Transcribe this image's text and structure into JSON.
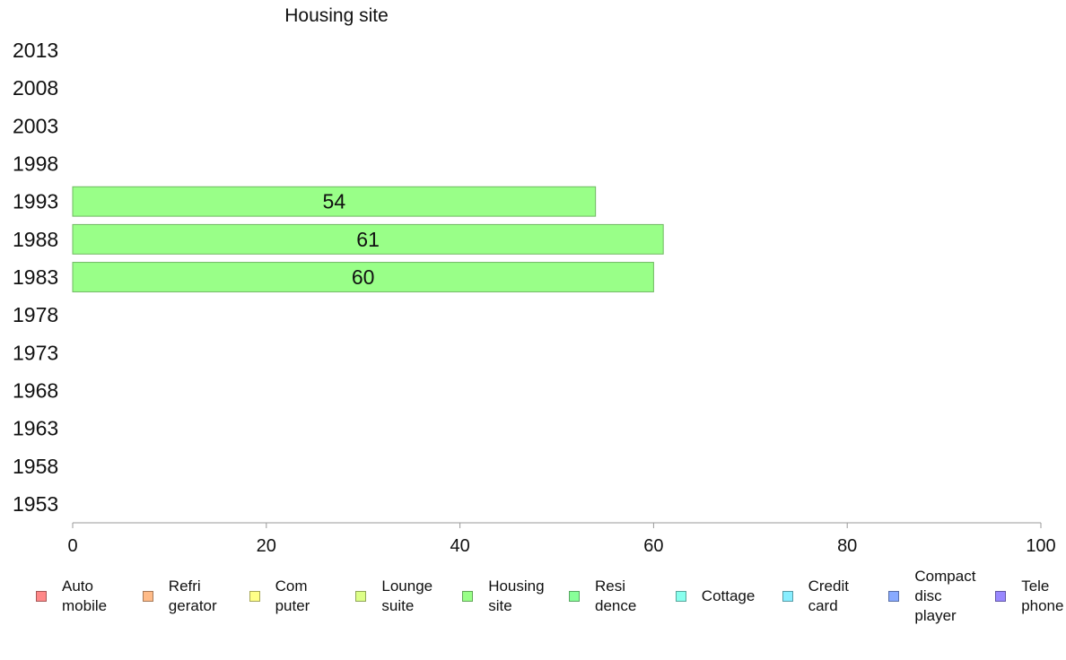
{
  "chart_data": {
    "type": "bar",
    "orientation": "horizontal",
    "title": "Housing site",
    "categories": [
      "2013",
      "2008",
      "2003",
      "1998",
      "1993",
      "1988",
      "1983",
      "1978",
      "1973",
      "1968",
      "1963",
      "1958",
      "1953"
    ],
    "series": [
      {
        "name": "Housing site",
        "color": "#99ff88",
        "values": [
          null,
          null,
          null,
          null,
          54,
          61,
          60,
          null,
          null,
          null,
          null,
          null,
          null
        ]
      }
    ],
    "data_labels": [
      "",
      "",
      "",
      "",
      "54",
      "61",
      "60",
      "",
      "",
      "",
      "",
      "",
      ""
    ],
    "xlim": [
      0,
      100
    ],
    "xticks": [
      "0",
      "20",
      "40",
      "60",
      "80",
      "100"
    ],
    "grid": false,
    "legend_position": "bottom",
    "legend": [
      {
        "label": "Auto\nmobile",
        "color": "#ff8888"
      },
      {
        "label": "Refri\ngerator",
        "color": "#ffbb88"
      },
      {
        "label": "Com\nputer",
        "color": "#ffff88"
      },
      {
        "label": "Lounge\nsuite",
        "color": "#ddff88"
      },
      {
        "label": "Housing\nsite",
        "color": "#99ff88"
      },
      {
        "label": "Resi\ndence",
        "color": "#88ff99"
      },
      {
        "label": "Cottage",
        "color": "#88ffee"
      },
      {
        "label": "Credit\ncard",
        "color": "#88eeff"
      },
      {
        "label": "Compact\ndisc\nplayer",
        "color": "#88aaff"
      },
      {
        "label": "Tele\nphone",
        "color": "#9988ff"
      }
    ]
  }
}
